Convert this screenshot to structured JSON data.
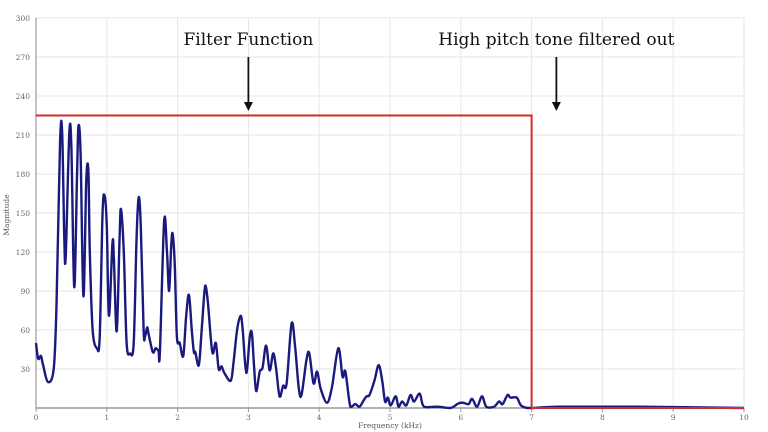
{
  "chart_data": {
    "type": "line",
    "title": "",
    "xlabel": "Frequency (kHz)",
    "ylabel": "Magnitude",
    "xlim": [
      0,
      10
    ],
    "ylim": [
      0,
      300
    ],
    "xticks": [
      "0",
      "1",
      "2",
      "3",
      "4",
      "5",
      "6",
      "7",
      "8",
      "9",
      "10"
    ],
    "yticks": [
      "30",
      "60",
      "90",
      "120",
      "150",
      "180",
      "210",
      "240",
      "270",
      "300"
    ],
    "grid": true,
    "series": [
      {
        "color": "#1a1a7e",
        "x": [
          0,
          0.03,
          0.07,
          0.1,
          0.17,
          0.25,
          0.29,
          0.34,
          0.37,
          0.4,
          0.42,
          0.47,
          0.5,
          0.54,
          0.58,
          0.6,
          0.63,
          0.67,
          0.71,
          0.74,
          0.76,
          0.8,
          0.86,
          0.9,
          0.94,
          0.97,
          1.0,
          1.03,
          1.08,
          1.1,
          1.14,
          1.18,
          1.2,
          1.24,
          1.28,
          1.33,
          1.38,
          1.42,
          1.45,
          1.48,
          1.52,
          1.54,
          1.57,
          1.59,
          1.65,
          1.69,
          1.73,
          1.75,
          1.81,
          1.85,
          1.88,
          1.91,
          1.93,
          1.96,
          1.99,
          2.03,
          2.08,
          2.12,
          2.16,
          2.2,
          2.23,
          2.25,
          2.3,
          2.34,
          2.38,
          2.4,
          2.43,
          2.49,
          2.54,
          2.58,
          2.62,
          2.66,
          2.75,
          2.79,
          2.84,
          2.89,
          2.92,
          2.97,
          3.02,
          3.05,
          3.08,
          3.11,
          3.16,
          3.2,
          3.25,
          3.3,
          3.35,
          3.39,
          3.44,
          3.49,
          3.54,
          3.61,
          3.66,
          3.71,
          3.75,
          3.82,
          3.86,
          3.92,
          3.97,
          4.02,
          4.11,
          4.18,
          4.27,
          4.33,
          4.37,
          4.44,
          4.51,
          4.57,
          4.63,
          4.67,
          4.71,
          4.78,
          4.84,
          4.89,
          4.93,
          4.97,
          5.01,
          5.08,
          5.12,
          5.17,
          5.23,
          5.29,
          5.34,
          5.42,
          5.48,
          5.67,
          5.85,
          5.95,
          5.99,
          6.04,
          6.11,
          6.16,
          6.23,
          6.3,
          6.36,
          6.47,
          6.54,
          6.59,
          6.66,
          6.7,
          6.79,
          6.85,
          6.94,
          7.01,
          7.4,
          8.5,
          10
        ],
        "y": [
          50,
          38,
          40,
          33,
          20,
          30,
          80,
          205,
          211,
          130,
          117,
          211,
          200,
          93,
          180,
          217,
          195,
          86,
          175,
          182,
          120,
          60,
          46,
          55,
          150,
          163,
          140,
          71,
          127,
          115,
          59,
          130,
          153,
          120,
          50,
          42,
          50,
          130,
          162,
          140,
          60,
          55,
          62,
          57,
          43,
          46,
          44,
          43,
          144,
          120,
          90,
          125,
          134,
          110,
          55,
          50,
          40,
          70,
          87,
          60,
          43,
          43,
          33,
          60,
          90,
          93,
          80,
          43,
          50,
          30,
          32,
          27,
          21,
          35,
          60,
          71,
          60,
          27,
          55,
          57,
          32,
          13,
          28,
          31,
          48,
          29,
          42,
          31,
          9,
          17,
          19,
          65,
          47,
          16,
          10,
          37,
          42,
          19,
          28,
          15,
          4,
          16,
          46,
          24,
          28,
          1,
          3,
          1,
          6,
          9,
          10,
          21,
          33,
          21,
          5,
          8,
          2,
          9,
          1,
          5,
          2,
          10,
          5,
          11,
          1,
          1,
          0,
          3,
          4,
          4,
          3,
          7,
          1,
          9,
          1,
          1,
          5,
          3,
          10,
          8,
          8,
          2,
          0,
          0,
          1,
          1,
          0
        ]
      }
    ],
    "filter": {
      "color": "#d42a2a",
      "cutoff_khz": 7,
      "passband_level": 225,
      "stopband_level": 0
    },
    "annotations": [
      {
        "text": "Filter Function",
        "arrow_x": 3.0
      },
      {
        "text": "High pitch tone filtered out",
        "arrow_x": 7.35
      }
    ]
  }
}
